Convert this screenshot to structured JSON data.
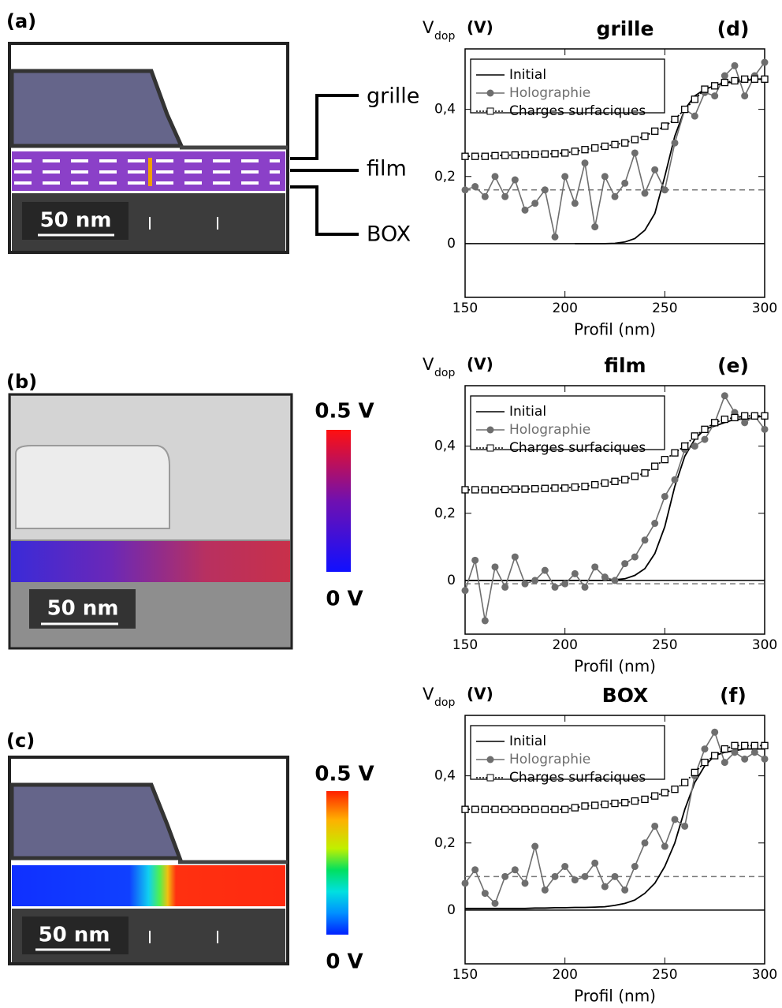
{
  "panels": {
    "a": {
      "label": "(a)",
      "scale": "50 nm",
      "labels": [
        "grille",
        "film",
        "BOX"
      ]
    },
    "b": {
      "label": "(b)",
      "scale": "50 nm",
      "cbar_max": "0.5 V",
      "cbar_min": "0 V"
    },
    "c": {
      "label": "(c)",
      "scale": "50 nm",
      "cbar_max": "0.5 V",
      "cbar_min": "0 V"
    }
  },
  "chart_data": [
    {
      "type": "line",
      "title": "grille",
      "panel": "(d)",
      "ylabel": "V",
      "ylabel_sub": "dop",
      "ylabel_unit": "(V)",
      "xlabel": "Profil (nm)",
      "xlim": [
        150,
        300
      ],
      "ylim": [
        -0.16,
        0.58
      ],
      "xticks": [
        150,
        200,
        250,
        300
      ],
      "yticks": [
        0,
        {
          "value": 0.2,
          "label": "0,2"
        },
        {
          "value": 0.4,
          "label": "0,4"
        }
      ],
      "zero_line": true,
      "reference_line": 0.16,
      "x": [
        150,
        155,
        160,
        165,
        170,
        175,
        180,
        185,
        190,
        195,
        200,
        205,
        210,
        215,
        220,
        225,
        230,
        235,
        240,
        245,
        250,
        255,
        260,
        265,
        270,
        275,
        280,
        285,
        290,
        295,
        300
      ],
      "series": [
        {
          "name": "Initial",
          "color": "#000000",
          "marker": null,
          "line_style": "solid",
          "values": [
            null,
            null,
            null,
            null,
            null,
            null,
            null,
            null,
            null,
            null,
            null,
            0,
            0,
            0,
            0,
            0.001,
            0.005,
            0.015,
            0.04,
            0.09,
            0.2,
            0.32,
            0.4,
            0.44,
            0.46,
            0.47,
            0.48,
            0.48,
            0.485,
            0.49,
            0.49
          ]
        },
        {
          "name": "Holographie",
          "color": "#6e6e6e",
          "marker": "circle",
          "line_style": "solid",
          "values": [
            0.16,
            0.17,
            0.14,
            0.2,
            0.14,
            0.19,
            0.1,
            0.12,
            0.16,
            0.02,
            0.2,
            0.12,
            0.24,
            0.05,
            0.2,
            0.14,
            0.18,
            0.27,
            0.15,
            0.22,
            0.16,
            0.3,
            0.4,
            0.38,
            0.45,
            0.44,
            0.5,
            0.53,
            0.44,
            0.5,
            0.54
          ]
        },
        {
          "name": "Charges surfaciques",
          "color": "#000000",
          "marker": "square",
          "line_style": "dotted",
          "values": [
            0.26,
            0.26,
            0.26,
            0.262,
            0.263,
            0.264,
            0.265,
            0.266,
            0.267,
            0.268,
            0.27,
            0.275,
            0.28,
            0.285,
            0.29,
            0.295,
            0.3,
            0.31,
            0.32,
            0.335,
            0.35,
            0.37,
            0.4,
            0.43,
            0.46,
            0.47,
            0.48,
            0.485,
            0.49,
            0.49,
            0.49
          ]
        }
      ]
    },
    {
      "type": "line",
      "title": "film",
      "panel": "(e)",
      "ylabel": "V",
      "ylabel_sub": "dop",
      "ylabel_unit": "(V)",
      "xlabel": "Profil (nm)",
      "xlim": [
        150,
        300
      ],
      "ylim": [
        -0.16,
        0.58
      ],
      "xticks": [
        150,
        200,
        250,
        300
      ],
      "yticks": [
        0,
        {
          "value": 0.2,
          "label": "0,2"
        },
        {
          "value": 0.4,
          "label": "0,4"
        }
      ],
      "zero_line": true,
      "reference_line": -0.01,
      "x": [
        150,
        155,
        160,
        165,
        170,
        175,
        180,
        185,
        190,
        195,
        200,
        205,
        210,
        215,
        220,
        225,
        230,
        235,
        240,
        245,
        250,
        255,
        260,
        265,
        270,
        275,
        280,
        285,
        290,
        295,
        300
      ],
      "series": [
        {
          "name": "Initial",
          "color": "#000000",
          "marker": null,
          "line_style": "solid",
          "values": [
            0,
            0,
            0,
            0,
            0,
            0,
            0,
            0,
            0,
            0,
            0,
            0,
            0,
            0,
            0,
            0.002,
            0.005,
            0.015,
            0.035,
            0.08,
            0.16,
            0.28,
            0.37,
            0.42,
            0.45,
            0.46,
            0.47,
            0.48,
            0.48,
            0.485,
            0.49
          ]
        },
        {
          "name": "Holographie",
          "color": "#6e6e6e",
          "marker": "circle",
          "line_style": "solid",
          "values": [
            -0.03,
            0.06,
            -0.12,
            0.04,
            -0.02,
            0.07,
            -0.01,
            0,
            0.03,
            -0.02,
            -0.01,
            0.02,
            -0.02,
            0.04,
            0.01,
            0,
            0.05,
            0.07,
            0.12,
            0.17,
            0.25,
            0.3,
            0.39,
            0.4,
            0.42,
            0.47,
            0.55,
            0.5,
            0.47,
            0.49,
            0.45
          ]
        },
        {
          "name": "Charges surfaciques",
          "color": "#000000",
          "marker": "square",
          "line_style": "dotted",
          "values": [
            0.27,
            0.27,
            0.27,
            0.27,
            0.271,
            0.272,
            0.272,
            0.273,
            0.274,
            0.275,
            0.275,
            0.278,
            0.28,
            0.285,
            0.29,
            0.295,
            0.3,
            0.31,
            0.32,
            0.34,
            0.36,
            0.38,
            0.4,
            0.43,
            0.45,
            0.47,
            0.48,
            0.485,
            0.49,
            0.49,
            0.49
          ]
        }
      ]
    },
    {
      "type": "line",
      "title": "BOX",
      "panel": "(f)",
      "ylabel": "V",
      "ylabel_sub": "dop",
      "ylabel_unit": "(V)",
      "xlabel": "Profil (nm)",
      "xlim": [
        150,
        300
      ],
      "ylim": [
        -0.16,
        0.58
      ],
      "xticks": [
        150,
        200,
        250,
        300
      ],
      "yticks": [
        0,
        {
          "value": 0.2,
          "label": "0,2"
        },
        {
          "value": 0.4,
          "label": "0,4"
        }
      ],
      "zero_line": true,
      "reference_line": 0.1,
      "x": [
        150,
        155,
        160,
        165,
        170,
        175,
        180,
        185,
        190,
        195,
        200,
        205,
        210,
        215,
        220,
        225,
        230,
        235,
        240,
        245,
        250,
        255,
        260,
        265,
        270,
        275,
        280,
        285,
        290,
        295,
        300
      ],
      "series": [
        {
          "name": "Initial",
          "color": "#000000",
          "marker": null,
          "line_style": "solid",
          "values": [
            0.005,
            0.005,
            0.005,
            0.005,
            0.005,
            0.005,
            0.005,
            0.006,
            0.006,
            0.007,
            0.007,
            0.008,
            0.008,
            0.009,
            0.01,
            0.014,
            0.02,
            0.03,
            0.05,
            0.08,
            0.13,
            0.2,
            0.3,
            0.38,
            0.43,
            0.46,
            0.47,
            0.475,
            0.48,
            0.48,
            0.48
          ]
        },
        {
          "name": "Holographie",
          "color": "#6e6e6e",
          "marker": "circle",
          "line_style": "solid",
          "values": [
            0.08,
            0.12,
            0.05,
            0.02,
            0.1,
            0.12,
            0.08,
            0.19,
            0.06,
            0.1,
            0.13,
            0.09,
            0.1,
            0.14,
            0.07,
            0.1,
            0.06,
            0.13,
            0.2,
            0.25,
            0.19,
            0.27,
            0.25,
            0.4,
            0.48,
            0.53,
            0.44,
            0.47,
            0.45,
            0.47,
            0.45
          ]
        },
        {
          "name": "Charges surfaciques",
          "color": "#000000",
          "marker": "square",
          "line_style": "dotted",
          "values": [
            0.3,
            0.3,
            0.3,
            0.3,
            0.3,
            0.3,
            0.3,
            0.3,
            0.3,
            0.3,
            0.3,
            0.305,
            0.31,
            0.312,
            0.315,
            0.318,
            0.32,
            0.325,
            0.33,
            0.34,
            0.35,
            0.36,
            0.38,
            0.41,
            0.44,
            0.46,
            0.48,
            0.49,
            0.49,
            0.49,
            0.49
          ]
        }
      ]
    }
  ]
}
